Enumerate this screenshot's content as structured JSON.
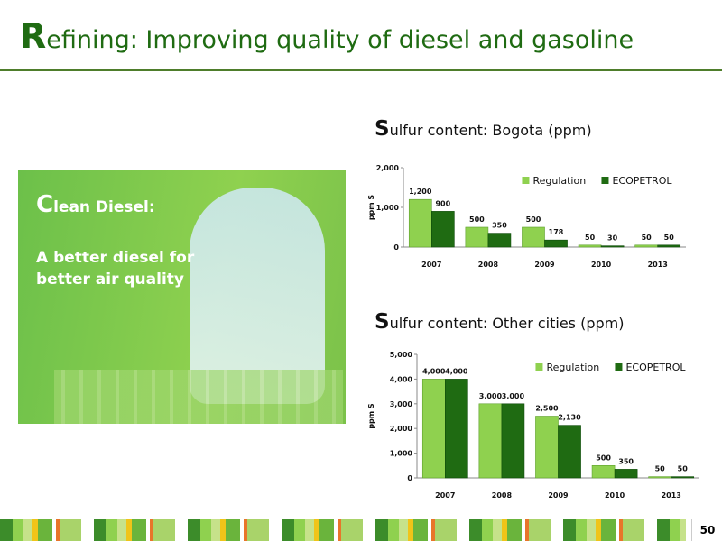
{
  "title": "Refining: Improving quality of diesel and gasoline",
  "panel": {
    "heading": "Clean Diesel:",
    "text": "A better diesel for better air quality"
  },
  "page_number": "50",
  "chart_data": [
    {
      "type": "bar",
      "title": "Sulfur content: Bogota (ppm)",
      "y_label": "ppm S",
      "categories": [
        "2007",
        "2008",
        "2009",
        "2010",
        "2013"
      ],
      "series": [
        {
          "name": "Regulation",
          "color": "#8fd14f",
          "values": [
            1200,
            500,
            500,
            50,
            50
          ],
          "value_labels": [
            "1,200",
            "500",
            "500",
            "50",
            "50"
          ]
        },
        {
          "name": "ECOPETROL",
          "color": "#1f6b12",
          "values": [
            900,
            350,
            178,
            30,
            50
          ],
          "value_labels": [
            "900",
            "350",
            "178",
            "30",
            "50"
          ]
        }
      ],
      "ylim": [
        0,
        2000
      ],
      "yticks": [
        0,
        {
          "value": 1000,
          "label": "1,000"
        },
        {
          "value": 2000,
          "label": "2,000"
        }
      ],
      "legend": "top-right"
    },
    {
      "type": "bar",
      "title": "Sulfur content: Other cities (ppm)",
      "y_label": "ppm S",
      "categories": [
        "2007",
        "2008",
        "2009",
        "2010",
        "2013"
      ],
      "series": [
        {
          "name": "Regulation",
          "color": "#8fd14f",
          "values": [
            4000,
            3000,
            2500,
            500,
            50
          ],
          "value_labels": [
            "4,000",
            "3,000",
            "2,500",
            "500",
            "50"
          ]
        },
        {
          "name": "ECOPETROL",
          "color": "#1f6b12",
          "values": [
            4000,
            3000,
            2130,
            350,
            50
          ],
          "value_labels": [
            "4,000",
            "3,000",
            "2,130",
            "350",
            "50"
          ]
        }
      ],
      "ylim": [
        0,
        5000
      ],
      "yticks": [
        0,
        {
          "value": 1000,
          "label": "1,000"
        },
        {
          "value": 2000,
          "label": "2,000"
        },
        {
          "value": 3000,
          "label": "3,000"
        },
        {
          "value": 4000,
          "label": "4,000"
        },
        {
          "value": 5000,
          "label": "5,000"
        }
      ],
      "legend": "top-right"
    }
  ]
}
